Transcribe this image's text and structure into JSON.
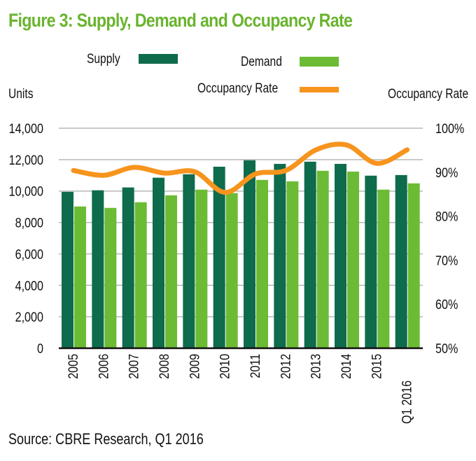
{
  "chart_data": {
    "type": "bar",
    "title": "Figure 3: Supply, Demand and Occupancy Rate",
    "source": "Source: CBRE Research, Q1 2016",
    "categories": [
      "2005",
      "2006",
      "2007",
      "2008",
      "2009",
      "2010",
      "2011",
      "2012",
      "2013",
      "2014",
      "2015",
      "Q1 2016"
    ],
    "series": [
      {
        "name": "Supply",
        "type": "bar",
        "axis": "left",
        "color": "#0e6b4c",
        "values": [
          9950,
          10050,
          10230,
          10850,
          11070,
          11550,
          11960,
          11730,
          11870,
          11730,
          10980,
          11020
        ]
      },
      {
        "name": "Demand",
        "type": "bar",
        "axis": "left",
        "color": "#6cbb34",
        "values": [
          9020,
          8930,
          9290,
          9730,
          10090,
          9870,
          10710,
          10620,
          11290,
          11240,
          10090,
          10490
        ]
      },
      {
        "name": "Occupancy Rate",
        "type": "line",
        "axis": "right",
        "color": "#f7941d",
        "values": [
          90.4,
          89.3,
          91.1,
          89.8,
          90.1,
          85.4,
          89.6,
          90.4,
          95.1,
          96.2,
          92.0,
          95.1
        ]
      }
    ],
    "ylabel": "Units",
    "y2label": "Occupancy Rate",
    "ylim": [
      0,
      14000
    ],
    "y2lim": [
      50,
      100
    ],
    "yticks": [
      "0",
      "2,000",
      "4,000",
      "6,000",
      "8,000",
      "10,000",
      "12,000",
      "14,000"
    ],
    "y2ticks": [
      "50%",
      "60%",
      "70%",
      "80%",
      "90%",
      "100%"
    ],
    "grid": true,
    "legend": "top"
  },
  "legend": {
    "supply": "Supply",
    "demand": "Demand",
    "occupancy": "Occupancy Rate"
  },
  "axis": {
    "left_title": "Units",
    "right_title": "Occupancy Rate"
  }
}
